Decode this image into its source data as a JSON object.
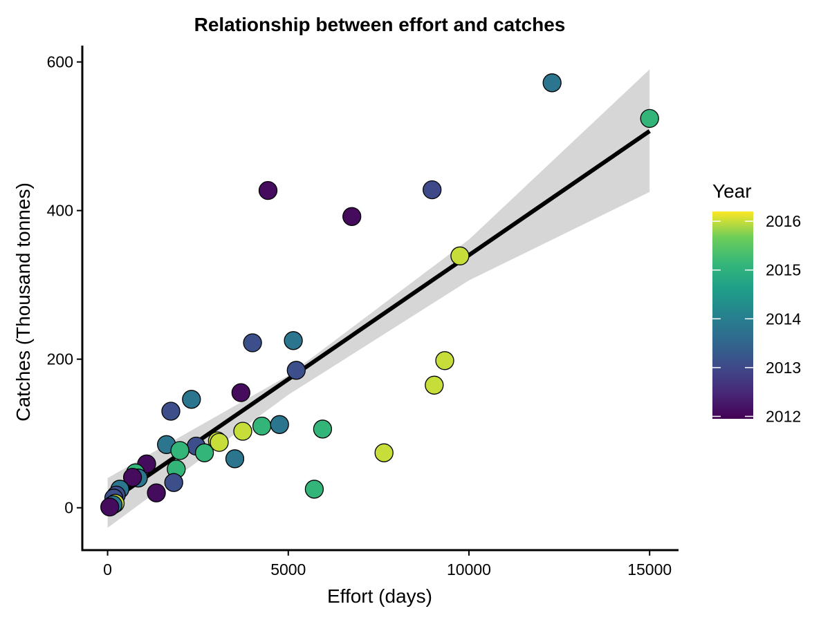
{
  "chart_data": {
    "type": "scatter",
    "title": "Relationship between effort and catches",
    "xlabel": "Effort (days)",
    "ylabel": "Catches (Thousand tonnes)",
    "xlim": [
      -700,
      15800
    ],
    "ylim": [
      -57,
      622
    ],
    "x_ticks": [
      0,
      5000,
      10000,
      15000
    ],
    "x_tick_labels": [
      "0",
      "5000",
      "10000",
      "15000"
    ],
    "y_ticks": [
      0,
      200,
      400,
      600
    ],
    "y_tick_labels": [
      "0",
      "200",
      "400",
      "600"
    ],
    "grid": false,
    "colorbar": {
      "title": "Year",
      "min": 2011.95,
      "max": 2016.2,
      "ticks": [
        2012,
        2013,
        2014,
        2015,
        2016
      ],
      "tick_labels": [
        "2012",
        "2013",
        "2014",
        "2015",
        "2016"
      ],
      "colormap": "viridis",
      "placement": "right"
    },
    "trend_line": {
      "method": "linear",
      "points": [
        [
          0,
          6
        ],
        [
          15000,
          507
        ]
      ],
      "confidence_band": {
        "x": [
          0,
          5000,
          10000,
          15000
        ],
        "lower": [
          -27,
          152,
          306,
          425
        ],
        "upper": [
          40,
          178,
          361,
          590
        ]
      }
    },
    "points": [
      {
        "x": 12300,
        "y": 572,
        "year": 2013.8
      },
      {
        "x": 15000,
        "y": 524,
        "year": 2015.1
      },
      {
        "x": 8980,
        "y": 428,
        "year": 2013.0
      },
      {
        "x": 4440,
        "y": 427,
        "year": 2012.1
      },
      {
        "x": 6760,
        "y": 392,
        "year": 2012.1
      },
      {
        "x": 9750,
        "y": 339,
        "year": 2016.0
      },
      {
        "x": 5140,
        "y": 225,
        "year": 2013.8
      },
      {
        "x": 4010,
        "y": 222,
        "year": 2013.1
      },
      {
        "x": 9330,
        "y": 198,
        "year": 2016.0
      },
      {
        "x": 5220,
        "y": 185,
        "year": 2013.1
      },
      {
        "x": 9040,
        "y": 165,
        "year": 2016.0
      },
      {
        "x": 3690,
        "y": 155,
        "year": 2012.1
      },
      {
        "x": 2320,
        "y": 146,
        "year": 2013.8
      },
      {
        "x": 1750,
        "y": 130,
        "year": 2013.1
      },
      {
        "x": 4270,
        "y": 110,
        "year": 2015.1
      },
      {
        "x": 4760,
        "y": 112,
        "year": 2013.8
      },
      {
        "x": 5950,
        "y": 106,
        "year": 2015.1
      },
      {
        "x": 3740,
        "y": 103,
        "year": 2016.0
      },
      {
        "x": 3040,
        "y": 90,
        "year": 2016.0
      },
      {
        "x": 3090,
        "y": 88,
        "year": 2016.0
      },
      {
        "x": 1630,
        "y": 85,
        "year": 2013.8
      },
      {
        "x": 2450,
        "y": 83,
        "year": 2013.1
      },
      {
        "x": 2000,
        "y": 77,
        "year": 2015.1
      },
      {
        "x": 2680,
        "y": 74,
        "year": 2015.1
      },
      {
        "x": 7650,
        "y": 74,
        "year": 2016.0
      },
      {
        "x": 3520,
        "y": 66,
        "year": 2013.8
      },
      {
        "x": 1080,
        "y": 59,
        "year": 2012.1
      },
      {
        "x": 1900,
        "y": 52,
        "year": 2015.1
      },
      {
        "x": 770,
        "y": 47,
        "year": 2015.1
      },
      {
        "x": 850,
        "y": 40,
        "year": 2013.8
      },
      {
        "x": 690,
        "y": 41,
        "year": 2012.1
      },
      {
        "x": 1830,
        "y": 34,
        "year": 2013.1
      },
      {
        "x": 5720,
        "y": 25,
        "year": 2015.1
      },
      {
        "x": 340,
        "y": 25,
        "year": 2013.8
      },
      {
        "x": 1350,
        "y": 20,
        "year": 2012.1
      },
      {
        "x": 240,
        "y": 17,
        "year": 2013.1
      },
      {
        "x": 170,
        "y": 13,
        "year": 2013.1
      },
      {
        "x": 210,
        "y": 6,
        "year": 2016.0
      },
      {
        "x": 150,
        "y": 4,
        "year": 2013.8
      },
      {
        "x": 60,
        "y": 1,
        "year": 2012.1
      }
    ]
  }
}
